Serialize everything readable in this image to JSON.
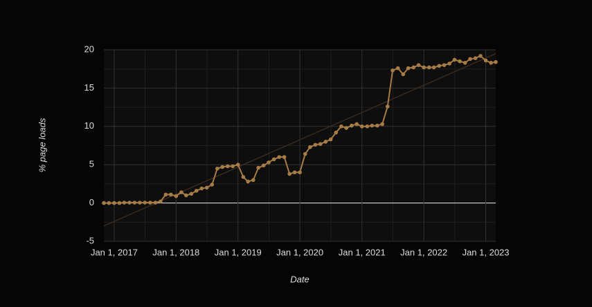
{
  "chart_data": {
    "type": "line",
    "x_label": "Date",
    "y_label": "% page loads",
    "x": [
      "2016-11-01",
      "2016-12-01",
      "2017-01-01",
      "2017-02-01",
      "2017-03-01",
      "2017-04-01",
      "2017-05-01",
      "2017-06-01",
      "2017-07-01",
      "2017-08-01",
      "2017-09-01",
      "2017-10-01",
      "2017-11-01",
      "2017-12-01",
      "2018-01-01",
      "2018-02-01",
      "2018-03-01",
      "2018-04-01",
      "2018-05-01",
      "2018-06-01",
      "2018-07-01",
      "2018-08-01",
      "2018-09-01",
      "2018-10-01",
      "2018-11-01",
      "2018-12-01",
      "2019-01-01",
      "2019-02-01",
      "2019-03-01",
      "2019-04-01",
      "2019-05-01",
      "2019-06-01",
      "2019-07-01",
      "2019-08-01",
      "2019-09-01",
      "2019-10-01",
      "2019-11-01",
      "2019-12-01",
      "2020-01-01",
      "2020-02-01",
      "2020-03-01",
      "2020-04-01",
      "2020-05-01",
      "2020-06-01",
      "2020-07-01",
      "2020-08-01",
      "2020-09-01",
      "2020-10-01",
      "2020-11-01",
      "2020-12-01",
      "2021-01-01",
      "2021-02-01",
      "2021-03-01",
      "2021-04-01",
      "2021-05-01",
      "2021-06-01",
      "2021-07-01",
      "2021-08-01",
      "2021-09-01",
      "2021-10-01",
      "2021-11-01",
      "2021-12-01",
      "2022-01-01",
      "2022-02-01",
      "2022-03-01",
      "2022-04-01",
      "2022-05-01",
      "2022-06-01",
      "2022-07-01",
      "2022-08-01",
      "2022-09-01",
      "2022-10-01",
      "2022-11-01",
      "2022-12-01",
      "2023-01-01",
      "2023-02-01",
      "2023-03-01"
    ],
    "series": [
      {
        "color": "#a87c46",
        "values": [
          0,
          0,
          0,
          0,
          0.05,
          0.05,
          0.05,
          0.05,
          0.05,
          0.05,
          0.05,
          0.2,
          1.1,
          1.1,
          0.9,
          1.4,
          1.0,
          1.2,
          1.6,
          1.9,
          2.0,
          2.4,
          4.5,
          4.7,
          4.8,
          4.8,
          5.0,
          3.4,
          2.8,
          3.0,
          4.6,
          4.9,
          5.3,
          5.7,
          6.0,
          6.0,
          3.8,
          4.0,
          4.0,
          6.4,
          7.3,
          7.6,
          7.7,
          8.0,
          8.3,
          9.2,
          10.0,
          9.8,
          10.1,
          10.3,
          10.0,
          10.0,
          10.1,
          10.1,
          10.3,
          12.6,
          17.3,
          17.6,
          16.8,
          17.6,
          17.7,
          18.0,
          17.7,
          17.7,
          17.7,
          17.9,
          18.0,
          18.2,
          18.7,
          18.5,
          18.3,
          18.8,
          18.9,
          19.2,
          18.6,
          18.3,
          18.4
        ]
      }
    ],
    "trendline": {
      "color": "#3b2a1c",
      "values": [
        -3.0,
        19.5
      ]
    },
    "xlim": [
      "2016-11-01",
      "2023-03-01"
    ],
    "xticks": [
      {
        "value": "2017-01-01",
        "label": "Jan 1, 2017"
      },
      {
        "value": "2018-01-01",
        "label": "Jan 1, 2018"
      },
      {
        "value": "2019-01-01",
        "label": "Jan 1, 2019"
      },
      {
        "value": "2020-01-01",
        "label": "Jan 1, 2020"
      },
      {
        "value": "2021-01-01",
        "label": "Jan 1, 2021"
      },
      {
        "value": "2022-01-01",
        "label": "Jan 1, 2022"
      },
      {
        "value": "2023-01-01",
        "label": "Jan 1, 2023"
      }
    ],
    "ylim": [
      -5,
      20
    ],
    "yticks": [
      -5,
      0,
      5,
      10,
      15,
      20
    ],
    "grid": true
  }
}
